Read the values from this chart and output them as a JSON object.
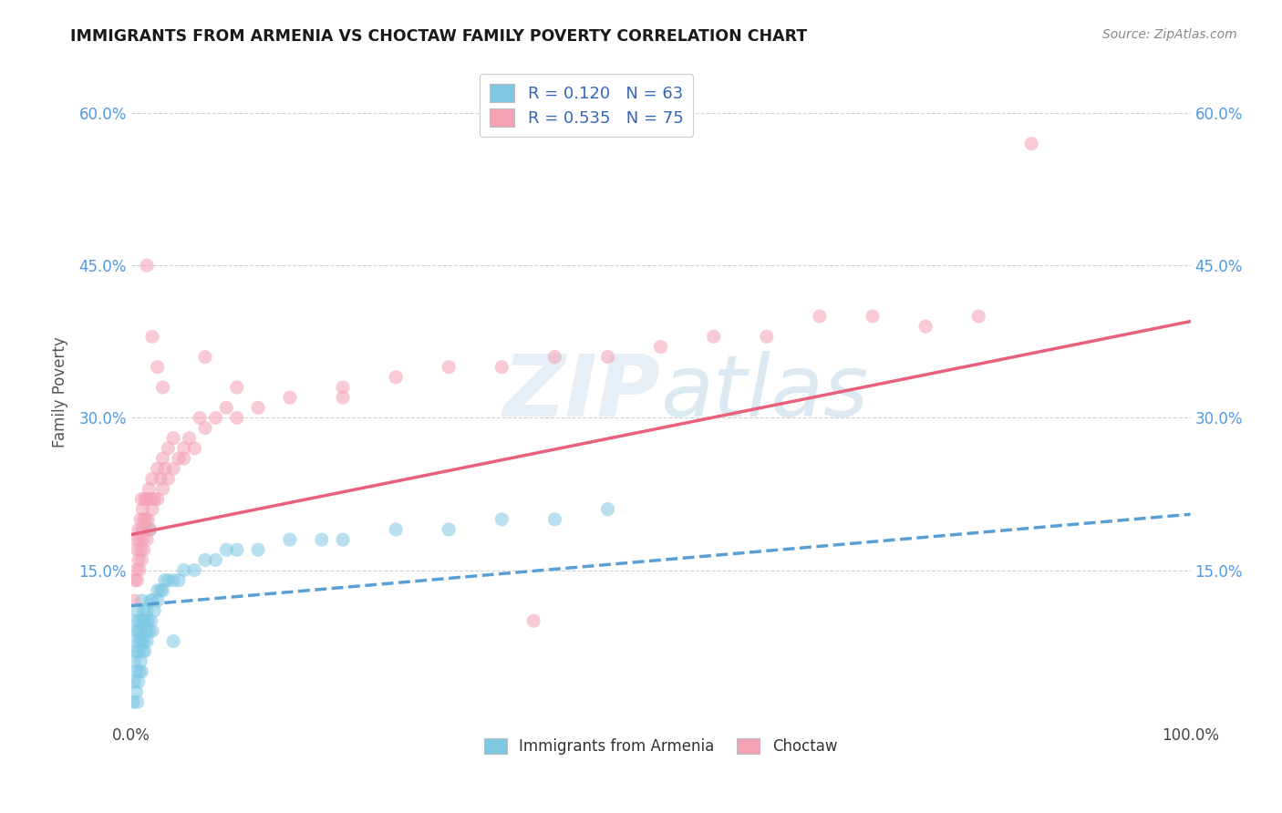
{
  "title": "IMMIGRANTS FROM ARMENIA VS CHOCTAW FAMILY POVERTY CORRELATION CHART",
  "source": "Source: ZipAtlas.com",
  "ylabel": "Family Poverty",
  "xlim": [
    0,
    1
  ],
  "ylim": [
    0,
    0.65
  ],
  "x_ticks": [
    0.0,
    1.0
  ],
  "x_tick_labels": [
    "0.0%",
    "100.0%"
  ],
  "y_ticks": [
    0.15,
    0.3,
    0.45,
    0.6
  ],
  "y_tick_labels": [
    "15.0%",
    "30.0%",
    "45.0%",
    "60.0%"
  ],
  "legend_r1": "R = 0.120   N = 63",
  "legend_r2": "R = 0.535   N = 75",
  "color_blue": "#7EC8E3",
  "color_pink": "#F4A0B5",
  "color_blue_line": "#5A9FD4",
  "color_pink_line": "#E8607A",
  "watermark_zip": "ZIP",
  "watermark_atlas": "atlas",
  "armenia_scatter_x": [
    0.002,
    0.003,
    0.003,
    0.004,
    0.004,
    0.005,
    0.005,
    0.005,
    0.006,
    0.006,
    0.006,
    0.007,
    0.007,
    0.007,
    0.008,
    0.008,
    0.008,
    0.009,
    0.009,
    0.01,
    0.01,
    0.01,
    0.011,
    0.011,
    0.012,
    0.012,
    0.013,
    0.013,
    0.014,
    0.015,
    0.015,
    0.016,
    0.017,
    0.018,
    0.019,
    0.02,
    0.02,
    0.022,
    0.025,
    0.028,
    0.03,
    0.032,
    0.035,
    0.04,
    0.045,
    0.05,
    0.06,
    0.07,
    0.08,
    0.09,
    0.1,
    0.12,
    0.15,
    0.18,
    0.2,
    0.25,
    0.3,
    0.35,
    0.4,
    0.45,
    0.018,
    0.025,
    0.04
  ],
  "armenia_scatter_y": [
    0.02,
    0.04,
    0.06,
    0.08,
    0.1,
    0.03,
    0.05,
    0.07,
    0.09,
    0.11,
    0.02,
    0.04,
    0.07,
    0.09,
    0.05,
    0.08,
    0.1,
    0.06,
    0.09,
    0.05,
    0.08,
    0.12,
    0.07,
    0.1,
    0.08,
    0.11,
    0.07,
    0.1,
    0.09,
    0.08,
    0.11,
    0.1,
    0.09,
    0.12,
    0.1,
    0.09,
    0.12,
    0.11,
    0.12,
    0.13,
    0.13,
    0.14,
    0.14,
    0.14,
    0.14,
    0.15,
    0.15,
    0.16,
    0.16,
    0.17,
    0.17,
    0.17,
    0.18,
    0.18,
    0.18,
    0.19,
    0.19,
    0.2,
    0.2,
    0.21,
    0.19,
    0.13,
    0.08
  ],
  "choctaw_scatter_x": [
    0.003,
    0.004,
    0.005,
    0.005,
    0.006,
    0.006,
    0.007,
    0.007,
    0.008,
    0.008,
    0.009,
    0.009,
    0.01,
    0.01,
    0.01,
    0.011,
    0.011,
    0.012,
    0.012,
    0.013,
    0.013,
    0.014,
    0.015,
    0.015,
    0.016,
    0.017,
    0.018,
    0.019,
    0.02,
    0.02,
    0.022,
    0.025,
    0.025,
    0.028,
    0.03,
    0.03,
    0.032,
    0.035,
    0.035,
    0.04,
    0.04,
    0.045,
    0.05,
    0.055,
    0.06,
    0.065,
    0.07,
    0.08,
    0.09,
    0.1,
    0.12,
    0.15,
    0.2,
    0.25,
    0.3,
    0.35,
    0.4,
    0.45,
    0.5,
    0.55,
    0.6,
    0.65,
    0.7,
    0.75,
    0.8,
    0.015,
    0.02,
    0.025,
    0.03,
    0.05,
    0.07,
    0.1,
    0.2,
    0.38,
    0.85
  ],
  "choctaw_scatter_y": [
    0.12,
    0.14,
    0.15,
    0.18,
    0.14,
    0.17,
    0.16,
    0.19,
    0.15,
    0.18,
    0.17,
    0.2,
    0.16,
    0.19,
    0.22,
    0.18,
    0.21,
    0.17,
    0.2,
    0.19,
    0.22,
    0.2,
    0.18,
    0.22,
    0.2,
    0.23,
    0.19,
    0.22,
    0.21,
    0.24,
    0.22,
    0.22,
    0.25,
    0.24,
    0.23,
    0.26,
    0.25,
    0.24,
    0.27,
    0.25,
    0.28,
    0.26,
    0.27,
    0.28,
    0.27,
    0.3,
    0.29,
    0.3,
    0.31,
    0.3,
    0.31,
    0.32,
    0.33,
    0.34,
    0.35,
    0.35,
    0.36,
    0.36,
    0.37,
    0.38,
    0.38,
    0.4,
    0.4,
    0.39,
    0.4,
    0.45,
    0.38,
    0.35,
    0.33,
    0.26,
    0.36,
    0.33,
    0.32,
    0.1,
    0.57
  ],
  "armenia_line_x": [
    0.0,
    1.0
  ],
  "armenia_line_y": [
    0.115,
    0.205
  ],
  "choctaw_line_x": [
    0.0,
    1.0
  ],
  "choctaw_line_y": [
    0.185,
    0.395
  ]
}
